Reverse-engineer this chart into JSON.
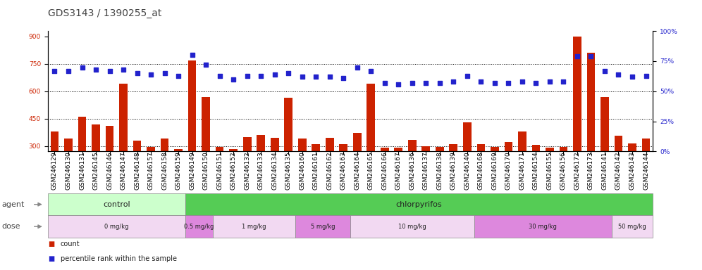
{
  "title": "GDS3143 / 1390255_at",
  "samples": [
    "GSM246129",
    "GSM246130",
    "GSM246131",
    "GSM246145",
    "GSM246146",
    "GSM246147",
    "GSM246148",
    "GSM246157",
    "GSM246158",
    "GSM246159",
    "GSM246149",
    "GSM246150",
    "GSM246151",
    "GSM246152",
    "GSM246132",
    "GSM246133",
    "GSM246134",
    "GSM246135",
    "GSM246160",
    "GSM246161",
    "GSM246162",
    "GSM246163",
    "GSM246164",
    "GSM246165",
    "GSM246166",
    "GSM246167",
    "GSM246136",
    "GSM246137",
    "GSM246138",
    "GSM246139",
    "GSM246140",
    "GSM246168",
    "GSM246169",
    "GSM246170",
    "GSM246171",
    "GSM246154",
    "GSM246155",
    "GSM246156",
    "GSM246172",
    "GSM246173",
    "GSM246141",
    "GSM246142",
    "GSM246143",
    "GSM246144"
  ],
  "counts": [
    380,
    340,
    460,
    420,
    410,
    640,
    330,
    295,
    340,
    285,
    770,
    570,
    295,
    285,
    350,
    360,
    345,
    565,
    340,
    310,
    345,
    310,
    370,
    640,
    290,
    290,
    335,
    300,
    295,
    310,
    430,
    310,
    295,
    320,
    380,
    305,
    290,
    295,
    900,
    810,
    570,
    355,
    315,
    340
  ],
  "percentiles": [
    67,
    67,
    70,
    68,
    67,
    68,
    65,
    64,
    65,
    63,
    80,
    72,
    63,
    60,
    63,
    63,
    64,
    65,
    62,
    62,
    62,
    61,
    70,
    67,
    57,
    56,
    57,
    57,
    57,
    58,
    63,
    58,
    57,
    57,
    58,
    57,
    58,
    58,
    79,
    79,
    67,
    64,
    62,
    63
  ],
  "agent_bands": [
    {
      "label": "control",
      "start": 0,
      "end": 10,
      "color": "#ccffcc"
    },
    {
      "label": "chlorpyrifos",
      "start": 10,
      "end": 44,
      "color": "#55cc55"
    }
  ],
  "dose_bands": [
    {
      "label": "0 mg/kg",
      "start": 0,
      "end": 10,
      "color": "#f2d9f2"
    },
    {
      "label": "0.5 mg/kg",
      "start": 10,
      "end": 12,
      "color": "#dd88dd"
    },
    {
      "label": "1 mg/kg",
      "start": 12,
      "end": 18,
      "color": "#f2d9f2"
    },
    {
      "label": "5 mg/kg",
      "start": 18,
      "end": 22,
      "color": "#dd88dd"
    },
    {
      "label": "10 mg/kg",
      "start": 22,
      "end": 31,
      "color": "#f2d9f2"
    },
    {
      "label": "30 mg/kg",
      "start": 31,
      "end": 41,
      "color": "#dd88dd"
    },
    {
      "label": "50 mg/kg",
      "start": 41,
      "end": 44,
      "color": "#f2d9f2"
    }
  ],
  "bar_color": "#cc2200",
  "dot_color": "#2222cc",
  "ylim_left": [
    270,
    930
  ],
  "ylim_right": [
    0,
    100
  ],
  "yticks_left": [
    300,
    450,
    600,
    750,
    900
  ],
  "yticks_right": [
    0,
    25,
    50,
    75,
    100
  ],
  "title_color": "#444444",
  "title_fontsize": 10,
  "tick_fontsize": 6.5,
  "label_fontsize": 8
}
